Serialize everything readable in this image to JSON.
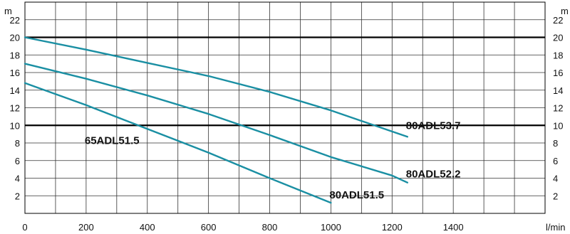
{
  "chart_data": {
    "type": "line",
    "title": "",
    "xlabel": "",
    "ylabel": "",
    "x_unit": "l/min",
    "y_unit_left": "m",
    "y_unit_right": "m",
    "xlim": [
      0,
      1700
    ],
    "ylim": [
      0,
      24
    ],
    "x_ticks": [
      0,
      200,
      400,
      600,
      800,
      1000,
      1200,
      1400
    ],
    "y_ticks": [
      2,
      4,
      6,
      8,
      10,
      12,
      14,
      16,
      18,
      20,
      22
    ],
    "grid": true,
    "emphasized_y_lines": [
      10,
      20
    ],
    "line_color": "#1a8fa3",
    "grid_color": "#333333",
    "series": [
      {
        "name": "80ADL53.7",
        "x": [
          0,
          200,
          400,
          600,
          800,
          1000,
          1200,
          1250
        ],
        "y": [
          20.0,
          18.6,
          17.1,
          15.6,
          13.8,
          11.7,
          9.3,
          8.7
        ]
      },
      {
        "name": "80ADL52.2",
        "x": [
          0,
          200,
          400,
          600,
          800,
          1000,
          1200,
          1250
        ],
        "y": [
          17.0,
          15.3,
          13.4,
          11.3,
          8.9,
          6.4,
          4.3,
          3.5
        ]
      },
      {
        "name": "65ADL51.5",
        "x": [
          0,
          200,
          400,
          600,
          800,
          1000
        ],
        "y": [
          14.8,
          12.3,
          9.6,
          6.9,
          4.0,
          1.2
        ]
      }
    ],
    "labels": [
      {
        "text": "80ADL53.7",
        "x": 1250,
        "y": 10.0
      },
      {
        "text": "80ADL52.2",
        "x": 1250,
        "y": 4.5
      },
      {
        "text": "80ADL51.5",
        "x": 1000,
        "y": 2.1
      },
      {
        "text": "65ADL51.5",
        "x": 200,
        "y": 8.3
      }
    ]
  }
}
